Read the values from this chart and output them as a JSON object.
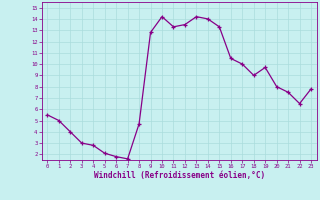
{
  "xlabel": "Windchill (Refroidissement éolien,°C)",
  "background_color": "#c8f0f0",
  "line_color": "#880088",
  "marker_color": "#880088",
  "x_values": [
    0,
    1,
    2,
    3,
    4,
    5,
    6,
    7,
    8,
    9,
    10,
    11,
    12,
    13,
    14,
    15,
    16,
    17,
    18,
    19,
    20,
    21,
    22,
    23
  ],
  "y_values": [
    5.5,
    5.0,
    4.0,
    3.0,
    2.8,
    2.1,
    1.8,
    1.6,
    4.7,
    12.8,
    14.2,
    13.3,
    13.5,
    14.2,
    14.0,
    13.3,
    10.5,
    10.0,
    9.0,
    9.7,
    8.0,
    7.5,
    6.5,
    7.8
  ],
  "ylim": [
    1.5,
    15.5
  ],
  "xlim": [
    -0.5,
    23.5
  ],
  "yticks": [
    2,
    3,
    4,
    5,
    6,
    7,
    8,
    9,
    10,
    11,
    12,
    13,
    14,
    15
  ],
  "xticks": [
    0,
    1,
    2,
    3,
    4,
    5,
    6,
    7,
    8,
    9,
    10,
    11,
    12,
    13,
    14,
    15,
    16,
    17,
    18,
    19,
    20,
    21,
    22,
    23
  ],
  "grid_color": "#aadddd",
  "spine_color": "#880088",
  "tick_color": "#880088",
  "label_color": "#880088"
}
